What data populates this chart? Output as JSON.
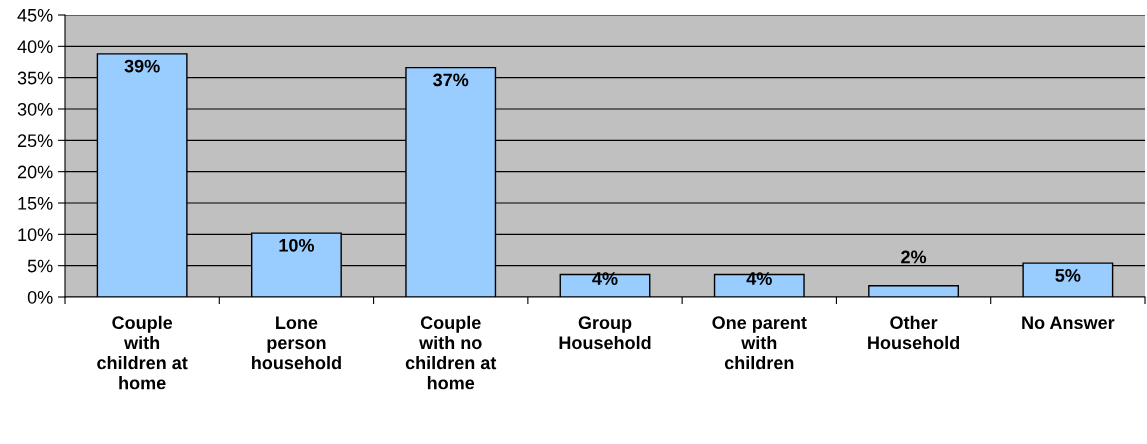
{
  "chart_data": {
    "type": "bar",
    "categories": [
      "Couple\nwith\nchildren at\nhome",
      "Lone\nperson\nhousehold",
      "Couple\nwith no\nchildren at\nhome",
      "Group\nHousehold",
      "One parent\nwith\nchildren",
      "Other\nHousehold",
      "No Answer"
    ],
    "values": [
      38.8,
      10.2,
      36.6,
      3.6,
      3.6,
      1.8,
      5.4
    ],
    "value_labels": [
      "39%",
      "10%",
      "37%",
      "4%",
      "4%",
      "2%",
      "5%"
    ],
    "color": "#99ccff",
    "ylim": [
      0,
      45
    ],
    "yticks": [
      {
        "value": 0,
        "label": "0%"
      },
      {
        "value": 5,
        "label": "5%"
      },
      {
        "value": 10,
        "label": "10%"
      },
      {
        "value": 15,
        "label": "15%"
      },
      {
        "value": 20,
        "label": "20%"
      },
      {
        "value": 25,
        "label": "25%"
      },
      {
        "value": 30,
        "label": "30%"
      },
      {
        "value": 35,
        "label": "35%"
      },
      {
        "value": 40,
        "label": "40%"
      },
      {
        "value": 45,
        "label": "45%"
      }
    ],
    "grid": "y",
    "legend": false
  }
}
